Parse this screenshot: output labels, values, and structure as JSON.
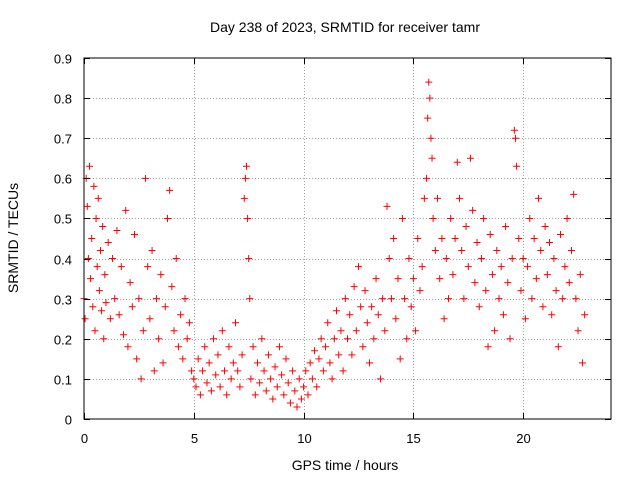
{
  "chart_data": {
    "type": "scatter",
    "title": "Day 238 of 2023, SRMTID for receiver tamr",
    "xlabel": "GPS time / hours",
    "ylabel": "SRMTID / TECUs",
    "xlim": [
      0,
      24
    ],
    "ylim": [
      0,
      0.9
    ],
    "xticks": [
      0,
      5,
      10,
      15,
      20
    ],
    "xtick_labels": [
      "0",
      "5",
      "10",
      "15",
      "20"
    ],
    "yticks": [
      0,
      0.1,
      0.2,
      0.3,
      0.4,
      0.5,
      0.6,
      0.7,
      0.8,
      0.9
    ],
    "ytick_labels": [
      "0",
      "0.1",
      "0.2",
      "0.3",
      "0.4",
      "0.5",
      "0.6",
      "0.7",
      "0.8",
      "0.9"
    ],
    "grid": true,
    "marker": "plus",
    "marker_color": "#ff0000",
    "series": [
      {
        "name": "SRMTID",
        "points": [
          [
            0.0,
            0.3
          ],
          [
            0.05,
            0.25
          ],
          [
            0.1,
            0.6
          ],
          [
            0.15,
            0.53
          ],
          [
            0.2,
            0.4
          ],
          [
            0.25,
            0.63
          ],
          [
            0.3,
            0.35
          ],
          [
            0.35,
            0.45
          ],
          [
            0.4,
            0.28
          ],
          [
            0.45,
            0.58
          ],
          [
            0.5,
            0.22
          ],
          [
            0.55,
            0.5
          ],
          [
            0.6,
            0.38
          ],
          [
            0.65,
            0.55
          ],
          [
            0.7,
            0.32
          ],
          [
            0.75,
            0.42
          ],
          [
            0.8,
            0.27
          ],
          [
            0.85,
            0.48
          ],
          [
            0.9,
            0.2
          ],
          [
            0.95,
            0.36
          ],
          [
            1.0,
            0.29
          ],
          [
            1.1,
            0.44
          ],
          [
            1.2,
            0.25
          ],
          [
            1.3,
            0.4
          ],
          [
            1.4,
            0.3
          ],
          [
            1.5,
            0.47
          ],
          [
            1.6,
            0.26
          ],
          [
            1.7,
            0.38
          ],
          [
            1.8,
            0.21
          ],
          [
            1.9,
            0.52
          ],
          [
            2.0,
            0.18
          ],
          [
            2.1,
            0.34
          ],
          [
            2.2,
            0.28
          ],
          [
            2.3,
            0.46
          ],
          [
            2.4,
            0.15
          ],
          [
            2.5,
            0.3
          ],
          [
            2.6,
            0.1
          ],
          [
            2.7,
            0.22
          ],
          [
            2.8,
            0.6
          ],
          [
            2.9,
            0.38
          ],
          [
            3.0,
            0.25
          ],
          [
            3.1,
            0.42
          ],
          [
            3.2,
            0.12
          ],
          [
            3.3,
            0.3
          ],
          [
            3.4,
            0.2
          ],
          [
            3.5,
            0.36
          ],
          [
            3.6,
            0.14
          ],
          [
            3.7,
            0.28
          ],
          [
            3.8,
            0.5
          ],
          [
            3.9,
            0.57
          ],
          [
            4.0,
            0.33
          ],
          [
            4.1,
            0.22
          ],
          [
            4.2,
            0.4
          ],
          [
            4.3,
            0.18
          ],
          [
            4.4,
            0.26
          ],
          [
            4.5,
            0.15
          ],
          [
            4.6,
            0.3
          ],
          [
            4.7,
            0.2
          ],
          [
            4.8,
            0.24
          ],
          [
            4.9,
            0.12
          ],
          [
            5.0,
            0.1
          ],
          [
            5.1,
            0.08
          ],
          [
            5.2,
            0.15
          ],
          [
            5.3,
            0.06
          ],
          [
            5.4,
            0.12
          ],
          [
            5.5,
            0.18
          ],
          [
            5.6,
            0.09
          ],
          [
            5.7,
            0.14
          ],
          [
            5.8,
            0.07
          ],
          [
            5.9,
            0.2
          ],
          [
            6.0,
            0.11
          ],
          [
            6.1,
            0.16
          ],
          [
            6.2,
            0.08
          ],
          [
            6.3,
            0.22
          ],
          [
            6.4,
            0.12
          ],
          [
            6.5,
            0.06
          ],
          [
            6.6,
            0.18
          ],
          [
            6.7,
            0.1
          ],
          [
            6.8,
            0.14
          ],
          [
            6.9,
            0.24
          ],
          [
            7.0,
            0.12
          ],
          [
            7.1,
            0.08
          ],
          [
            7.2,
            0.16
          ],
          [
            7.3,
            0.55
          ],
          [
            7.35,
            0.6
          ],
          [
            7.4,
            0.63
          ],
          [
            7.45,
            0.5
          ],
          [
            7.5,
            0.4
          ],
          [
            7.55,
            0.3
          ],
          [
            7.6,
            0.1
          ],
          [
            7.7,
            0.18
          ],
          [
            7.8,
            0.06
          ],
          [
            7.9,
            0.14
          ],
          [
            8.0,
            0.09
          ],
          [
            8.1,
            0.2
          ],
          [
            8.2,
            0.12
          ],
          [
            8.3,
            0.07
          ],
          [
            8.4,
            0.16
          ],
          [
            8.5,
            0.1
          ],
          [
            8.6,
            0.05
          ],
          [
            8.7,
            0.13
          ],
          [
            8.8,
            0.08
          ],
          [
            8.9,
            0.18
          ],
          [
            9.0,
            0.11
          ],
          [
            9.1,
            0.06
          ],
          [
            9.2,
            0.15
          ],
          [
            9.3,
            0.09
          ],
          [
            9.4,
            0.04
          ],
          [
            9.5,
            0.12
          ],
          [
            9.6,
            0.07
          ],
          [
            9.7,
            0.03
          ],
          [
            9.8,
            0.1
          ],
          [
            9.9,
            0.05
          ],
          [
            10.0,
            0.08
          ],
          [
            10.1,
            0.12
          ],
          [
            10.2,
            0.06
          ],
          [
            10.3,
            0.14
          ],
          [
            10.4,
            0.1
          ],
          [
            10.5,
            0.17
          ],
          [
            10.6,
            0.08
          ],
          [
            10.7,
            0.15
          ],
          [
            10.8,
            0.2
          ],
          [
            10.9,
            0.12
          ],
          [
            11.0,
            0.18
          ],
          [
            11.1,
            0.24
          ],
          [
            11.2,
            0.14
          ],
          [
            11.3,
            0.1
          ],
          [
            11.4,
            0.2
          ],
          [
            11.5,
            0.27
          ],
          [
            11.6,
            0.16
          ],
          [
            11.7,
            0.22
          ],
          [
            11.8,
            0.12
          ],
          [
            11.9,
            0.3
          ],
          [
            12.0,
            0.2
          ],
          [
            12.1,
            0.26
          ],
          [
            12.2,
            0.16
          ],
          [
            12.3,
            0.33
          ],
          [
            12.4,
            0.22
          ],
          [
            12.5,
            0.38
          ],
          [
            12.6,
            0.28
          ],
          [
            12.7,
            0.18
          ],
          [
            12.8,
            0.32
          ],
          [
            12.9,
            0.24
          ],
          [
            13.0,
            0.14
          ],
          [
            13.1,
            0.28
          ],
          [
            13.2,
            0.2
          ],
          [
            13.3,
            0.35
          ],
          [
            13.4,
            0.26
          ],
          [
            13.5,
            0.1
          ],
          [
            13.6,
            0.3
          ],
          [
            13.7,
            0.22
          ],
          [
            13.8,
            0.53
          ],
          [
            13.9,
            0.4
          ],
          [
            14.0,
            0.3
          ],
          [
            14.1,
            0.45
          ],
          [
            14.2,
            0.25
          ],
          [
            14.3,
            0.35
          ],
          [
            14.4,
            0.15
          ],
          [
            14.5,
            0.5
          ],
          [
            14.6,
            0.3
          ],
          [
            14.7,
            0.2
          ],
          [
            14.8,
            0.4
          ],
          [
            14.9,
            0.28
          ],
          [
            15.0,
            0.35
          ],
          [
            15.1,
            0.22
          ],
          [
            15.2,
            0.45
          ],
          [
            15.3,
            0.32
          ],
          [
            15.4,
            0.38
          ],
          [
            15.5,
            0.55
          ],
          [
            15.6,
            0.6
          ],
          [
            15.65,
            0.75
          ],
          [
            15.7,
            0.84
          ],
          [
            15.75,
            0.8
          ],
          [
            15.8,
            0.7
          ],
          [
            15.85,
            0.65
          ],
          [
            15.9,
            0.5
          ],
          [
            16.0,
            0.42
          ],
          [
            16.1,
            0.55
          ],
          [
            16.2,
            0.35
          ],
          [
            16.3,
            0.45
          ],
          [
            16.4,
            0.25
          ],
          [
            16.5,
            0.4
          ],
          [
            16.6,
            0.3
          ],
          [
            16.7,
            0.5
          ],
          [
            16.8,
            0.36
          ],
          [
            16.9,
            0.45
          ],
          [
            17.0,
            0.64
          ],
          [
            17.1,
            0.55
          ],
          [
            17.2,
            0.42
          ],
          [
            17.3,
            0.3
          ],
          [
            17.4,
            0.48
          ],
          [
            17.5,
            0.38
          ],
          [
            17.6,
            0.65
          ],
          [
            17.7,
            0.52
          ],
          [
            17.8,
            0.34
          ],
          [
            17.9,
            0.44
          ],
          [
            18.0,
            0.28
          ],
          [
            18.1,
            0.4
          ],
          [
            18.2,
            0.5
          ],
          [
            18.3,
            0.32
          ],
          [
            18.4,
            0.18
          ],
          [
            18.5,
            0.46
          ],
          [
            18.6,
            0.36
          ],
          [
            18.7,
            0.22
          ],
          [
            18.8,
            0.42
          ],
          [
            18.9,
            0.3
          ],
          [
            19.0,
            0.38
          ],
          [
            19.1,
            0.26
          ],
          [
            19.2,
            0.48
          ],
          [
            19.3,
            0.34
          ],
          [
            19.4,
            0.2
          ],
          [
            19.5,
            0.4
          ],
          [
            19.6,
            0.72
          ],
          [
            19.65,
            0.7
          ],
          [
            19.7,
            0.63
          ],
          [
            19.8,
            0.45
          ],
          [
            19.9,
            0.32
          ],
          [
            20.0,
            0.4
          ],
          [
            20.1,
            0.25
          ],
          [
            20.2,
            0.38
          ],
          [
            20.3,
            0.5
          ],
          [
            20.4,
            0.3
          ],
          [
            20.5,
            0.45
          ],
          [
            20.6,
            0.35
          ],
          [
            20.7,
            0.55
          ],
          [
            20.8,
            0.42
          ],
          [
            20.9,
            0.28
          ],
          [
            21.0,
            0.48
          ],
          [
            21.1,
            0.36
          ],
          [
            21.2,
            0.44
          ],
          [
            21.3,
            0.26
          ],
          [
            21.4,
            0.4
          ],
          [
            21.5,
            0.32
          ],
          [
            21.6,
            0.18
          ],
          [
            21.7,
            0.46
          ],
          [
            21.8,
            0.3
          ],
          [
            21.9,
            0.38
          ],
          [
            22.0,
            0.5
          ],
          [
            22.1,
            0.34
          ],
          [
            22.2,
            0.42
          ],
          [
            22.3,
            0.56
          ],
          [
            22.4,
            0.3
          ],
          [
            22.5,
            0.22
          ],
          [
            22.6,
            0.36
          ],
          [
            22.7,
            0.14
          ],
          [
            22.8,
            0.26
          ]
        ]
      }
    ]
  }
}
